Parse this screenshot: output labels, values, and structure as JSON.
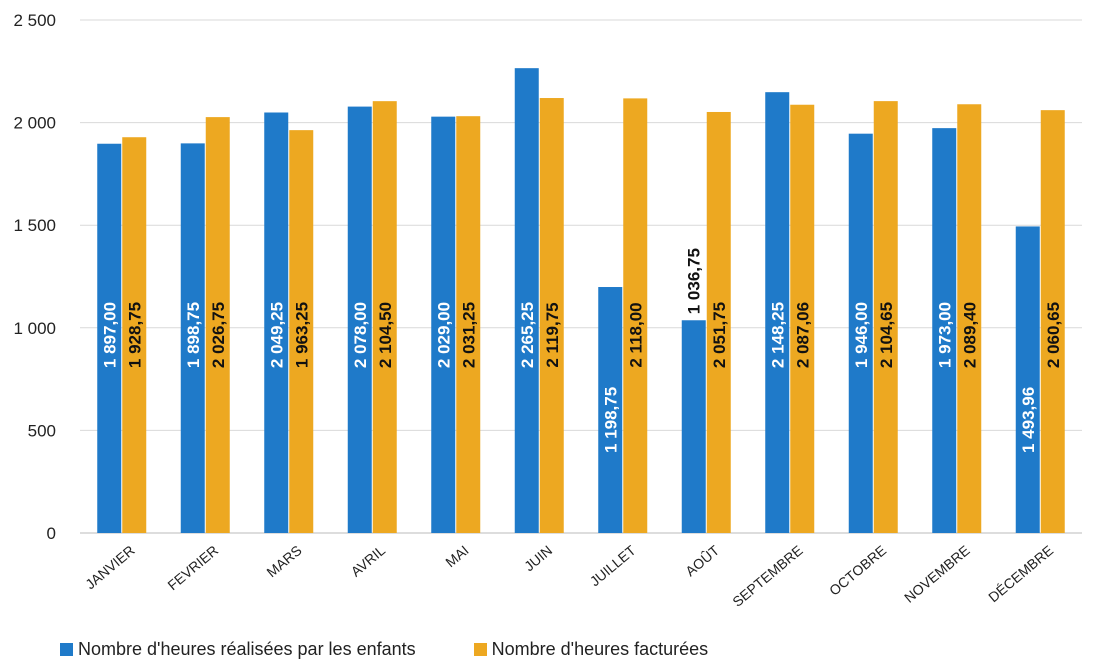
{
  "chart_data": {
    "type": "bar",
    "categories": [
      "JANVIER",
      "FEVRIER",
      "MARS",
      "AVRIL",
      "MAI",
      "JUIN",
      "JUILLET",
      "AOÛT",
      "SEPTEMBRE",
      "OCTOBRE",
      "NOVEMBRE",
      "DÉCEMBRE"
    ],
    "series": [
      {
        "name": "Nombre d'heures réalisées par les enfants",
        "color": "#1f7ac9",
        "values": [
          1897.0,
          1898.75,
          2049.25,
          2078.0,
          2029.0,
          2265.25,
          1198.75,
          1036.75,
          2148.25,
          1946.0,
          1973.0,
          1493.96
        ],
        "labels": [
          "1 897,00",
          "1 898,75",
          "2 049,25",
          "2 078,00",
          "2 029,00",
          "2 265,25",
          "1 198,75",
          "1 036,75",
          "2 148,25",
          "1 946,00",
          "1 973,00",
          "1 493,96"
        ]
      },
      {
        "name": "Nombre d'heures facturées",
        "color": "#eda821",
        "values": [
          1928.75,
          2026.75,
          1963.25,
          2104.5,
          2031.25,
          2119.75,
          2118.0,
          2051.75,
          2087.06,
          2104.65,
          2089.4,
          2060.65
        ],
        "labels": [
          "1 928,75",
          "2 026,75",
          "1 963,25",
          "2 104,50",
          "2 031,25",
          "2 119,75",
          "2 118,00",
          "2 051,75",
          "2 087,06",
          "2 104,65",
          "2 089,40",
          "2 060,65"
        ]
      }
    ],
    "yticks": [
      0,
      500,
      1000,
      1500,
      2000,
      2500
    ],
    "ytick_labels": [
      "0",
      "500",
      "1 000",
      "1 500",
      "2 000",
      "2 500"
    ],
    "ylim": [
      0,
      2500
    ],
    "grid": true,
    "legend": "bottom-left"
  }
}
